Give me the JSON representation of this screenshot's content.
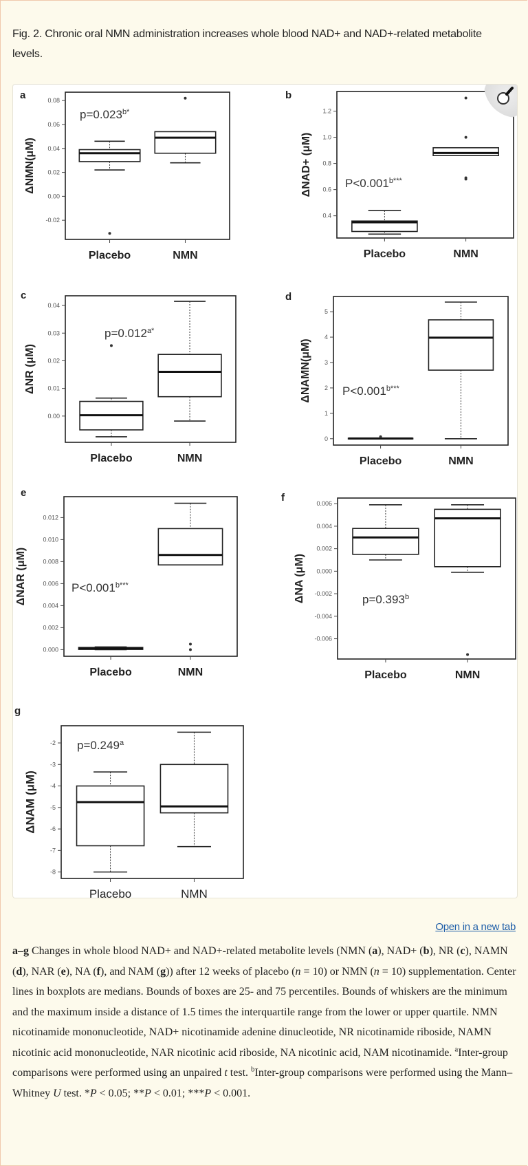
{
  "figure_title": "Fig. 2. Chronic oral NMN administration increases whole blood NAD+ and NAD+-related metabolite levels.",
  "open_link": "Open in a new tab",
  "zoom_icon": "magnifier-icon",
  "chart_data": [
    {
      "type": "boxplot",
      "panel": "a",
      "ylabel": "ΔNMN(μM)",
      "ylim": [
        -0.036,
        0.087
      ],
      "ticks": [
        -0.02,
        0.0,
        0.02,
        0.04,
        0.06,
        0.08
      ],
      "tick_labels": [
        "-0.02",
        "0.00",
        "0.02",
        "0.04",
        "0.06",
        "0.08"
      ],
      "p_text": "p=0.023",
      "p_sup": "b*",
      "xlabel_bold": true,
      "groups": [
        {
          "name": "Placebo",
          "whisker_low": 0.022,
          "q1": 0.029,
          "median": 0.036,
          "q3": 0.039,
          "whisker_high": 0.046,
          "outliers": [
            -0.031
          ]
        },
        {
          "name": "NMN",
          "whisker_low": 0.028,
          "q1": 0.036,
          "median": 0.049,
          "q3": 0.054,
          "whisker_high": 0.054,
          "outliers": [
            0.082
          ]
        }
      ]
    },
    {
      "type": "boxplot",
      "panel": "b",
      "ylabel": "ΔNAD+ (μM)",
      "ylim": [
        0.23,
        1.35
      ],
      "ticks": [
        0.4,
        0.6,
        0.8,
        1.0,
        1.2
      ],
      "tick_labels": [
        "0.4",
        "0.6",
        "0.8",
        "1.0",
        "1.2"
      ],
      "p_text": "P<0.001",
      "p_sup": "b***",
      "xlabel_bold": true,
      "groups": [
        {
          "name": "Placebo",
          "whisker_low": 0.26,
          "q1": 0.28,
          "median": 0.35,
          "q3": 0.36,
          "whisker_high": 0.44,
          "outliers": []
        },
        {
          "name": "NMN",
          "whisker_low": 0.86,
          "q1": 0.86,
          "median": 0.88,
          "q3": 0.92,
          "whisker_high": 0.92,
          "outliers": [
            0.68,
            0.69,
            1.0,
            1.3
          ]
        }
      ]
    },
    {
      "type": "boxplot",
      "panel": "c",
      "ylabel": "ΔNR (μM)",
      "ylim": [
        -0.0095,
        0.0435
      ],
      "ticks": [
        0.0,
        0.01,
        0.02,
        0.03,
        0.04
      ],
      "tick_labels": [
        "0.00",
        "0.01",
        "0.02",
        "0.03",
        "0.04"
      ],
      "p_text": "p=0.012",
      "p_sup": "a*",
      "xlabel_bold": true,
      "groups": [
        {
          "name": "Placebo",
          "whisker_low": -0.0075,
          "q1": -0.005,
          "median": 0.0003,
          "q3": 0.0053,
          "whisker_high": 0.0065,
          "outliers": [
            0.0255
          ]
        },
        {
          "name": "NMN",
          "whisker_low": -0.0018,
          "q1": 0.007,
          "median": 0.016,
          "q3": 0.0223,
          "whisker_high": 0.0415,
          "outliers": []
        }
      ]
    },
    {
      "type": "boxplot",
      "panel": "d",
      "ylabel": "ΔNAMN(μM)",
      "ylim": [
        -0.25,
        5.6
      ],
      "ticks": [
        0,
        1,
        2,
        3,
        4,
        5
      ],
      "tick_labels": [
        "0",
        "1",
        "2",
        "3",
        "4",
        "5"
      ],
      "p_text": "P<0.001",
      "p_sup": "b***",
      "xlabel_bold": true,
      "groups": [
        {
          "name": "Placebo",
          "whisker_low": 0.0,
          "q1": 0.0,
          "median": 0.01,
          "q3": 0.02,
          "whisker_high": 0.02,
          "outliers": [
            0.08
          ]
        },
        {
          "name": "NMN",
          "whisker_low": 0.0,
          "q1": 2.7,
          "median": 3.98,
          "q3": 4.68,
          "whisker_high": 5.38,
          "outliers": []
        }
      ]
    },
    {
      "type": "boxplot",
      "panel": "e",
      "ylabel": "ΔNAR (μM)",
      "ylim": [
        -0.0006,
        0.0139
      ],
      "ticks": [
        0.0,
        0.002,
        0.004,
        0.006,
        0.008,
        0.01,
        0.012
      ],
      "tick_labels": [
        "0.000",
        "0.002",
        "0.004",
        "0.006",
        "0.008",
        "0.010",
        "0.012"
      ],
      "p_text": "P<0.001",
      "p_sup": "b***",
      "xlabel_bold": true,
      "groups": [
        {
          "name": "Placebo",
          "whisker_low": 0.0,
          "q1": 2e-05,
          "median": 0.0001,
          "q3": 0.0002,
          "whisker_high": 0.00025,
          "outliers": []
        },
        {
          "name": "NMN",
          "whisker_low": 0.0077,
          "q1": 0.0077,
          "median": 0.0086,
          "q3": 0.011,
          "whisker_high": 0.0133,
          "outliers": [
            0.0005,
            0.0
          ]
        }
      ]
    },
    {
      "type": "boxplot",
      "panel": "f",
      "ylabel": "ΔNA (μM)",
      "ylim": [
        -0.0078,
        0.0065
      ],
      "ticks": [
        -0.006,
        -0.004,
        -0.002,
        0.0,
        0.002,
        0.004,
        0.006
      ],
      "tick_labels": [
        "-0.006",
        "-0.004",
        "-0.002",
        "0.000",
        "0.002",
        "0.004",
        "0.006"
      ],
      "p_text": "p=0.393",
      "p_sup": "b",
      "xlabel_bold": true,
      "groups": [
        {
          "name": "Placebo",
          "whisker_low": 0.001,
          "q1": 0.0015,
          "median": 0.003,
          "q3": 0.0038,
          "whisker_high": 0.0059,
          "outliers": []
        },
        {
          "name": "NMN",
          "whisker_low": -0.0001,
          "q1": 0.0004,
          "median": 0.0047,
          "q3": 0.0055,
          "whisker_high": 0.0059,
          "outliers": [
            -0.0074
          ]
        }
      ]
    },
    {
      "type": "boxplot",
      "panel": "g",
      "ylabel": "ΔNAM (μM)",
      "ylim": [
        -8.3,
        -1.2
      ],
      "ticks": [
        -8,
        -7,
        -6,
        -5,
        -4,
        -3,
        -2
      ],
      "tick_labels": [
        "-8",
        "-7",
        "-6",
        "-5",
        "-4",
        "-3",
        "-2"
      ],
      "p_text": "p=0.249",
      "p_sup": "a",
      "xlabel_bold": false,
      "groups": [
        {
          "name": "Placebo",
          "whisker_low": -8.0,
          "q1": -6.78,
          "median": -4.75,
          "q3": -4.0,
          "whisker_high": -3.35,
          "outliers": []
        },
        {
          "name": "NMN",
          "whisker_low": -6.82,
          "q1": -5.25,
          "median": -4.95,
          "q3": -3.0,
          "whisker_high": -1.5,
          "outliers": []
        }
      ]
    }
  ],
  "caption": [
    {
      "t": "a–g",
      "s": "b"
    },
    {
      "t": " Changes in whole blood NAD+ and NAD+-related metabolite levels (NMN (",
      "s": ""
    },
    {
      "t": "a",
      "s": "b"
    },
    {
      "t": "), NAD+ (",
      "s": ""
    },
    {
      "t": "b",
      "s": "b"
    },
    {
      "t": "), NR (",
      "s": ""
    },
    {
      "t": "c",
      "s": "b"
    },
    {
      "t": "), NAMN (",
      "s": ""
    },
    {
      "t": "d",
      "s": "b"
    },
    {
      "t": "), NAR (",
      "s": ""
    },
    {
      "t": "e",
      "s": "b"
    },
    {
      "t": "), NA (",
      "s": ""
    },
    {
      "t": "f",
      "s": "b"
    },
    {
      "t": "), and NAM (",
      "s": ""
    },
    {
      "t": "g",
      "s": "b"
    },
    {
      "t": ")) after 12 weeks of placebo (",
      "s": ""
    },
    {
      "t": "n",
      "s": "i"
    },
    {
      "t": " = 10) or NMN (",
      "s": ""
    },
    {
      "t": "n",
      "s": "i"
    },
    {
      "t": " = 10) supplementation. Center lines in boxplots are medians. Bounds of boxes are 25- and 75 percentiles. Bounds of whiskers are the minimum and the maximum inside a distance of 1.5 times the interquartile range from the lower or upper quartile. NMN nicotinamide mononucleotide, NAD+ nicotinamide adenine dinucleotide, NR nicotinamide riboside, NAMN nicotinic acid mononucleotide, NAR nicotinic acid riboside, NA nicotinic acid, NAM nicotinamide. ",
      "s": ""
    },
    {
      "t": "a",
      "s": "sup"
    },
    {
      "t": "Inter-group comparisons were performed using an unpaired ",
      "s": ""
    },
    {
      "t": "t",
      "s": "i"
    },
    {
      "t": " test. ",
      "s": ""
    },
    {
      "t": "b",
      "s": "sup"
    },
    {
      "t": "Inter-group comparisons were performed using the Mann–Whitney ",
      "s": ""
    },
    {
      "t": "U",
      "s": "i"
    },
    {
      "t": " test. *",
      "s": ""
    },
    {
      "t": "P",
      "s": "i"
    },
    {
      "t": " < 0.05; **",
      "s": ""
    },
    {
      "t": "P",
      "s": "i"
    },
    {
      "t": " < 0.01; ***",
      "s": ""
    },
    {
      "t": "P",
      "s": "i"
    },
    {
      "t": " < 0.001.",
      "s": ""
    }
  ]
}
